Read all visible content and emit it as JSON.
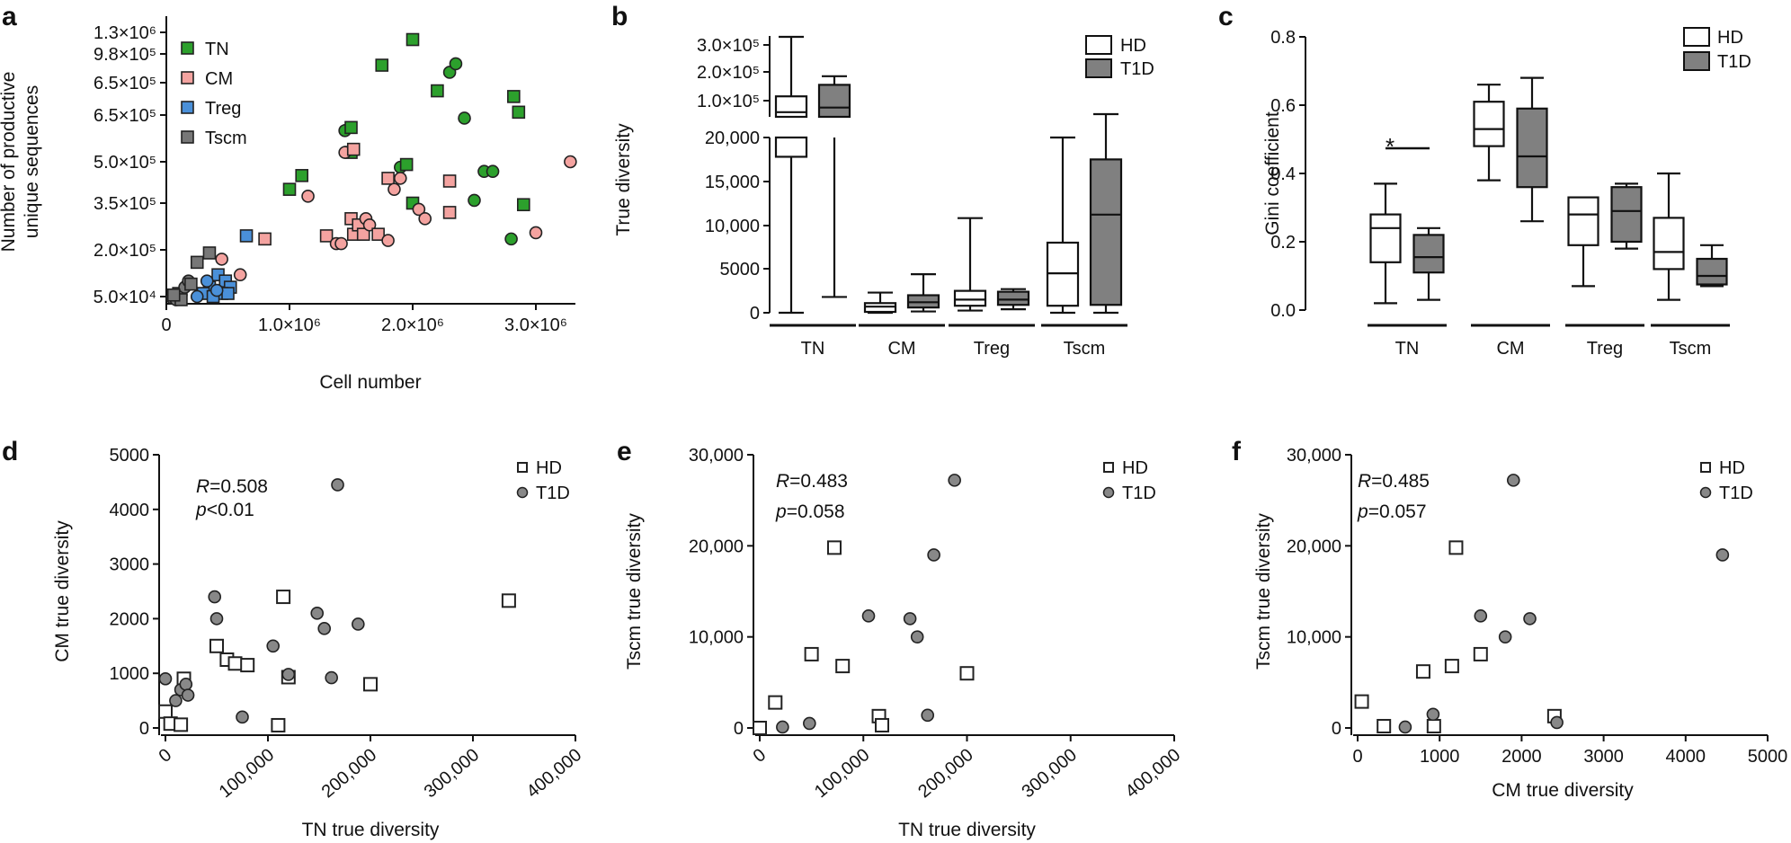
{
  "panels": {
    "a": {
      "label": "a"
    },
    "b": {
      "label": "b"
    },
    "c": {
      "label": "c"
    },
    "d": {
      "label": "d",
      "stats": {
        "r": "=0.508",
        "p": "<0.01"
      }
    },
    "e": {
      "label": "e",
      "stats": {
        "r": "=0.483",
        "p": "=0.058"
      }
    },
    "f": {
      "label": "f",
      "stats": {
        "r": "=0.485",
        "p": "=0.057"
      }
    }
  },
  "annotations": {
    "r_symbol": "R",
    "p_symbol": "p",
    "significance": "*"
  },
  "colors": {
    "TN": "#2ca02c",
    "CM": "#f4a3a0",
    "Treg": "#4a90d9",
    "Tscm": "#777777",
    "HD": "#ffffff",
    "T1D": "#808080",
    "T1D_point": "#888888"
  },
  "chart_data": [
    {
      "id": "a",
      "type": "scatter",
      "xlabel": "Cell number",
      "ylabel": [
        "Number of productive",
        "unique sequences"
      ],
      "xlim": [
        0,
        3300000
      ],
      "x_ticks": [
        {
          "v": 0,
          "label": "0"
        },
        {
          "v": 1000000,
          "label": "1.0×10⁶"
        },
        {
          "v": 2000000,
          "label": "2.0×10⁶"
        },
        {
          "v": 3000000,
          "label": "3.0×10⁶"
        }
      ],
      "y_ticks": [
        {
          "label": "5.0×10⁴"
        },
        {
          "label": "2.0×10⁵"
        },
        {
          "label": "3.5×10⁵"
        },
        {
          "label": "5.0×10⁵"
        },
        {
          "label": "6.5×10⁵"
        },
        {
          "label": "6.5×10⁵"
        },
        {
          "label": "9.8×10⁵"
        },
        {
          "label": "1.3×10⁶"
        }
      ],
      "legend": [
        "TN",
        "CM",
        "Treg",
        "Tscm"
      ],
      "legend_position": "top-left",
      "series": [
        {
          "name": "TN",
          "points": [
            {
              "x": 1000000,
              "y": 400000,
              "s": "sq"
            },
            {
              "x": 1100000,
              "y": 450000,
              "s": "sq"
            },
            {
              "x": 1450000,
              "y": 600000,
              "s": "ci"
            },
            {
              "x": 1500000,
              "y": 610000,
              "s": "sq"
            },
            {
              "x": 1500000,
              "y": 530000,
              "s": "sq"
            },
            {
              "x": 1750000,
              "y": 1000000,
              "s": "sq"
            },
            {
              "x": 1900000,
              "y": 480000,
              "s": "ci"
            },
            {
              "x": 1950000,
              "y": 490000,
              "s": "sq"
            },
            {
              "x": 2000000,
              "y": 1180000,
              "s": "sq"
            },
            {
              "x": 2000000,
              "y": 350000,
              "s": "sq"
            },
            {
              "x": 2200000,
              "y": 820000,
              "s": "sq"
            },
            {
              "x": 2300000,
              "y": 950000,
              "s": "ci"
            },
            {
              "x": 2350000,
              "y": 1010000,
              "s": "ci"
            },
            {
              "x": 2420000,
              "y": 640000,
              "s": "ci"
            },
            {
              "x": 2500000,
              "y": 360000,
              "s": "ci"
            },
            {
              "x": 2580000,
              "y": 465000,
              "s": "ci"
            },
            {
              "x": 2650000,
              "y": 465000,
              "s": "ci"
            },
            {
              "x": 2820000,
              "y": 780000,
              "s": "sq"
            },
            {
              "x": 2860000,
              "y": 670000,
              "s": "sq"
            },
            {
              "x": 2900000,
              "y": 345000,
              "s": "sq"
            },
            {
              "x": 2800000,
              "y": 235000,
              "s": "ci"
            }
          ]
        },
        {
          "name": "CM",
          "points": [
            {
              "x": 800000,
              "y": 235000,
              "s": "sq"
            },
            {
              "x": 1150000,
              "y": 375000,
              "s": "ci"
            },
            {
              "x": 1300000,
              "y": 245000,
              "s": "sq"
            },
            {
              "x": 1380000,
              "y": 220000,
              "s": "ci"
            },
            {
              "x": 1420000,
              "y": 220000,
              "s": "ci"
            },
            {
              "x": 1450000,
              "y": 530000,
              "s": "ci"
            },
            {
              "x": 1520000,
              "y": 540000,
              "s": "sq"
            },
            {
              "x": 1500000,
              "y": 300000,
              "s": "sq"
            },
            {
              "x": 1520000,
              "y": 250000,
              "s": "sq"
            },
            {
              "x": 1560000,
              "y": 280000,
              "s": "sq"
            },
            {
              "x": 1600000,
              "y": 250000,
              "s": "sq"
            },
            {
              "x": 1620000,
              "y": 300000,
              "s": "ci"
            },
            {
              "x": 1650000,
              "y": 280000,
              "s": "ci"
            },
            {
              "x": 1720000,
              "y": 250000,
              "s": "sq"
            },
            {
              "x": 1800000,
              "y": 440000,
              "s": "sq"
            },
            {
              "x": 1850000,
              "y": 400000,
              "s": "ci"
            },
            {
              "x": 1900000,
              "y": 440000,
              "s": "ci"
            },
            {
              "x": 1800000,
              "y": 230000,
              "s": "ci"
            },
            {
              "x": 2050000,
              "y": 330000,
              "s": "ci"
            },
            {
              "x": 2100000,
              "y": 300000,
              "s": "ci"
            },
            {
              "x": 2300000,
              "y": 430000,
              "s": "sq"
            },
            {
              "x": 2300000,
              "y": 320000,
              "s": "sq"
            },
            {
              "x": 3000000,
              "y": 255000,
              "s": "ci"
            },
            {
              "x": 3280000,
              "y": 500000,
              "s": "ci"
            },
            {
              "x": 450000,
              "y": 170000,
              "s": "ci"
            },
            {
              "x": 600000,
              "y": 120000,
              "s": "ci"
            }
          ]
        },
        {
          "name": "Treg",
          "points": [
            {
              "x": 350000,
              "y": 80000,
              "s": "sq"
            },
            {
              "x": 420000,
              "y": 120000,
              "s": "sq"
            },
            {
              "x": 480000,
              "y": 100000,
              "s": "sq"
            },
            {
              "x": 520000,
              "y": 80000,
              "s": "sq"
            },
            {
              "x": 450000,
              "y": 60000,
              "s": "sq"
            },
            {
              "x": 300000,
              "y": 60000,
              "s": "sq"
            },
            {
              "x": 250000,
              "y": 50000,
              "s": "ci"
            },
            {
              "x": 380000,
              "y": 50000,
              "s": "sq"
            },
            {
              "x": 650000,
              "y": 245000,
              "s": "sq"
            },
            {
              "x": 500000,
              "y": 60000,
              "s": "sq"
            },
            {
              "x": 330000,
              "y": 100000,
              "s": "ci"
            },
            {
              "x": 410000,
              "y": 70000,
              "s": "ci"
            }
          ]
        },
        {
          "name": "Tscm",
          "points": [
            {
              "x": 50000,
              "y": 45000,
              "s": "ci"
            },
            {
              "x": 80000,
              "y": 40000,
              "s": "ci"
            },
            {
              "x": 100000,
              "y": 60000,
              "s": "sq"
            },
            {
              "x": 120000,
              "y": 55000,
              "s": "ci"
            },
            {
              "x": 150000,
              "y": 80000,
              "s": "ci"
            },
            {
              "x": 180000,
              "y": 100000,
              "s": "ci"
            },
            {
              "x": 200000,
              "y": 90000,
              "s": "sq"
            },
            {
              "x": 250000,
              "y": 160000,
              "s": "sq"
            },
            {
              "x": 350000,
              "y": 190000,
              "s": "sq"
            },
            {
              "x": 120000,
              "y": 40000,
              "s": "sq"
            },
            {
              "x": 60000,
              "y": 55000,
              "s": "sq"
            }
          ]
        }
      ]
    },
    {
      "id": "b",
      "type": "box",
      "ylabel": "True diversity",
      "y_ticks_lower": [
        "0",
        "5000",
        "10,000",
        "15,000",
        "20,000"
      ],
      "y_ticks_upper": [
        "1.0×10⁵",
        "2.0×10⁵",
        "3.0×10⁵"
      ],
      "categories": [
        "TN",
        "CM",
        "Treg",
        "Tscm"
      ],
      "legend": [
        "HD",
        "T1D"
      ],
      "legend_position": "top-right",
      "boxes": [
        {
          "cat": "TN",
          "group": "HD",
          "min": 0,
          "q1": 17800,
          "med": 75000,
          "q3": 115000,
          "max": 330000
        },
        {
          "cat": "TN",
          "group": "T1D",
          "min": 1800,
          "q1": 20000,
          "med": 85000,
          "q3": 155000,
          "max": 185000
        },
        {
          "cat": "CM",
          "group": "HD",
          "min": 0,
          "q1": 100,
          "med": 700,
          "q3": 1100,
          "max": 2300
        },
        {
          "cat": "CM",
          "group": "T1D",
          "min": 150,
          "q1": 600,
          "med": 1200,
          "q3": 2000,
          "max": 4400
        },
        {
          "cat": "Treg",
          "group": "HD",
          "min": 250,
          "q1": 800,
          "med": 1500,
          "q3": 2500,
          "max": 10800
        },
        {
          "cat": "Treg",
          "group": "T1D",
          "min": 400,
          "q1": 900,
          "med": 1500,
          "q3": 2400,
          "max": 2700
        },
        {
          "cat": "Tscm",
          "group": "HD",
          "min": 0,
          "q1": 800,
          "med": 4500,
          "q3": 8000,
          "max": 20000
        },
        {
          "cat": "Tscm",
          "group": "T1D",
          "min": 0,
          "q1": 900,
          "med": 11200,
          "q3": 17500,
          "max": 40000
        }
      ]
    },
    {
      "id": "c",
      "type": "box",
      "ylabel": "Gini coefficient",
      "ylim": [
        0,
        0.8
      ],
      "y_ticks": [
        "0.0",
        "0.2",
        "0.4",
        "0.6",
        "0.8"
      ],
      "categories": [
        "TN",
        "CM",
        "Treg",
        "Tscm"
      ],
      "legend": [
        "HD",
        "T1D"
      ],
      "legend_position": "top-right",
      "boxes": [
        {
          "cat": "TN",
          "group": "HD",
          "min": 0.02,
          "q1": 0.14,
          "med": 0.24,
          "q3": 0.28,
          "max": 0.37
        },
        {
          "cat": "TN",
          "group": "T1D",
          "min": 0.03,
          "q1": 0.11,
          "med": 0.155,
          "q3": 0.22,
          "max": 0.24
        },
        {
          "cat": "CM",
          "group": "HD",
          "min": 0.38,
          "q1": 0.48,
          "med": 0.53,
          "q3": 0.61,
          "max": 0.66
        },
        {
          "cat": "CM",
          "group": "T1D",
          "min": 0.26,
          "q1": 0.36,
          "med": 0.45,
          "q3": 0.59,
          "max": 0.68
        },
        {
          "cat": "Treg",
          "group": "HD",
          "min": 0.07,
          "q1": 0.19,
          "med": 0.28,
          "q3": 0.33,
          "max": 0.33
        },
        {
          "cat": "Treg",
          "group": "T1D",
          "min": 0.18,
          "q1": 0.2,
          "med": 0.29,
          "q3": 0.36,
          "max": 0.37
        },
        {
          "cat": "Tscm",
          "group": "HD",
          "min": 0.03,
          "q1": 0.12,
          "med": 0.17,
          "q3": 0.27,
          "max": 0.4
        },
        {
          "cat": "Tscm",
          "group": "T1D",
          "min": 0.07,
          "q1": 0.075,
          "med": 0.1,
          "q3": 0.15,
          "max": 0.19
        }
      ]
    },
    {
      "id": "d",
      "type": "scatter",
      "xlabel": "TN true diversity",
      "ylabel": "CM true diversity",
      "xlim": [
        0,
        400000
      ],
      "ylim": [
        0,
        5000
      ],
      "x_ticks": [
        "0",
        "100,000",
        "200,000",
        "300,000",
        "400,000"
      ],
      "y_ticks": [
        "0",
        "1000",
        "2000",
        "3000",
        "4000",
        "5000"
      ],
      "legend": [
        "HD",
        "T1D"
      ],
      "legend_position": "top-right",
      "series": [
        {
          "name": "HD",
          "points": [
            [
              0,
              300
            ],
            [
              5000,
              80
            ],
            [
              15000,
              60
            ],
            [
              18000,
              900
            ],
            [
              50000,
              1500
            ],
            [
              60000,
              1250
            ],
            [
              68000,
              1180
            ],
            [
              80000,
              1150
            ],
            [
              110000,
              50
            ],
            [
              115000,
              2400
            ],
            [
              120000,
              930
            ],
            [
              200000,
              800
            ],
            [
              335000,
              2330
            ]
          ]
        },
        {
          "name": "T1D",
          "points": [
            [
              0,
              900
            ],
            [
              10000,
              500
            ],
            [
              15000,
              700
            ],
            [
              20000,
              800
            ],
            [
              22000,
              600
            ],
            [
              48000,
              2400
            ],
            [
              50000,
              2000
            ],
            [
              75000,
              200
            ],
            [
              105000,
              1500
            ],
            [
              120000,
              980
            ],
            [
              148000,
              2100
            ],
            [
              155000,
              1820
            ],
            [
              162000,
              920
            ],
            [
              168000,
              4450
            ],
            [
              188000,
              1900
            ]
          ]
        }
      ]
    },
    {
      "id": "e",
      "type": "scatter",
      "xlabel": "TN true diversity",
      "ylabel": "Tscm true diversity",
      "xlim": [
        0,
        400000
      ],
      "ylim": [
        0,
        30000
      ],
      "x_ticks": [
        "0",
        "100,000",
        "200,000",
        "300,000",
        "400,000"
      ],
      "y_ticks": [
        "0",
        "10,000",
        "20,000",
        "30,000"
      ],
      "legend": [
        "HD",
        "T1D"
      ],
      "legend_position": "top-right",
      "series": [
        {
          "name": "HD",
          "points": [
            [
              0,
              0
            ],
            [
              15000,
              2800
            ],
            [
              50000,
              8100
            ],
            [
              72000,
              19800
            ],
            [
              80000,
              6800
            ],
            [
              115000,
              1300
            ],
            [
              118000,
              300
            ],
            [
              200000,
              6000
            ]
          ]
        },
        {
          "name": "T1D",
          "points": [
            [
              22000,
              100
            ],
            [
              48000,
              500
            ],
            [
              105000,
              12300
            ],
            [
              145000,
              12000
            ],
            [
              152000,
              10000
            ],
            [
              162000,
              1400
            ],
            [
              168000,
              19000
            ],
            [
              188000,
              27200
            ]
          ]
        }
      ]
    },
    {
      "id": "f",
      "type": "scatter",
      "xlabel": "CM true diversity",
      "ylabel": "Tscm true diversity",
      "xlim": [
        0,
        5000
      ],
      "ylim": [
        0,
        30000
      ],
      "x_ticks": [
        "0",
        "1000",
        "2000",
        "3000",
        "4000",
        "5000"
      ],
      "y_ticks": [
        "0",
        "10,000",
        "20,000",
        "30,000"
      ],
      "legend": [
        "HD",
        "T1D"
      ],
      "legend_position": "top-right",
      "series": [
        {
          "name": "HD",
          "points": [
            [
              50,
              2900
            ],
            [
              320,
              200
            ],
            [
              800,
              6200
            ],
            [
              930,
              200
            ],
            [
              1150,
              6800
            ],
            [
              1200,
              19800
            ],
            [
              1500,
              8100
            ],
            [
              2400,
              1300
            ]
          ]
        },
        {
          "name": "T1D",
          "points": [
            [
              580,
              100
            ],
            [
              920,
              1500
            ],
            [
              1500,
              12300
            ],
            [
              1800,
              10000
            ],
            [
              1900,
              27200
            ],
            [
              2100,
              12000
            ],
            [
              2430,
              600
            ],
            [
              4450,
              19000
            ]
          ]
        }
      ]
    }
  ]
}
